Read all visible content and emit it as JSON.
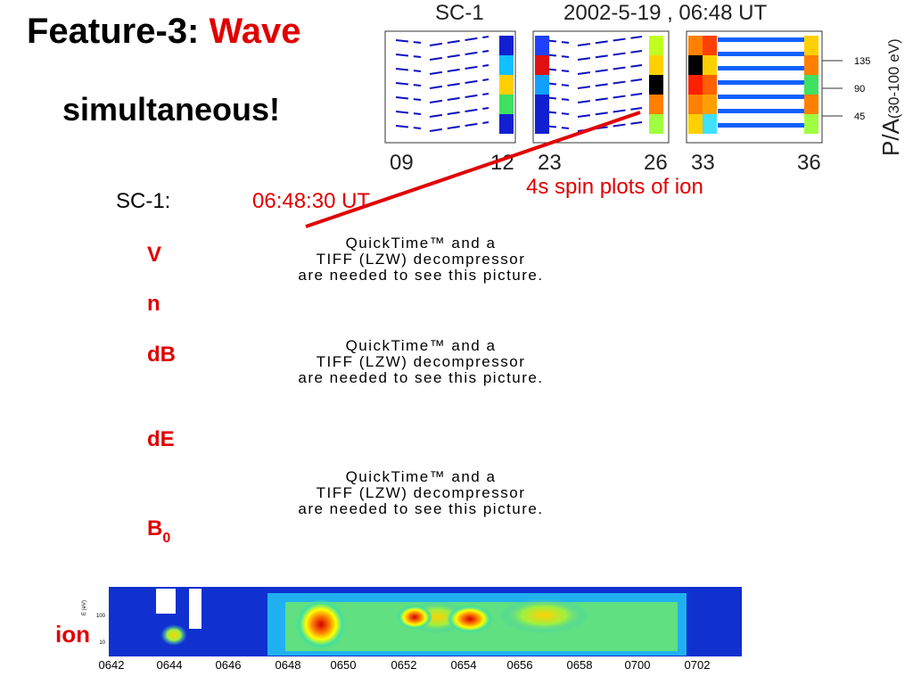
{
  "title": {
    "prefix": "Feature-3:",
    "highlight": "Wave"
  },
  "subtitle": "simultaneous!",
  "spin_plot": {
    "spacecraft": "SC-1",
    "datetime": "2002-5-19 , 06:48 UT",
    "x_ticks": [
      "09",
      "12",
      "23",
      "26",
      "33",
      "36"
    ],
    "pa_ticks": [
      "135",
      "90",
      "45"
    ],
    "axis_label": "P/A",
    "axis_unit": "(30-100 eV)",
    "annotation": "4s spin plots of ion"
  },
  "event": {
    "spacecraft": "SC-1:",
    "time": "06:48:30 UT"
  },
  "panel_labels": [
    "V",
    "n",
    "dB",
    "dE"
  ],
  "b0": {
    "base": "B",
    "subscript": "0"
  },
  "placeholder": [
    "QuickTime™ and a",
    "TIFF (LZW) decompressor",
    "are needed to see this picture."
  ],
  "ion_spectrogram": {
    "label": "ion",
    "y_label": "E (eV)",
    "y_ticks": [
      "100",
      "10"
    ],
    "x_ticks": [
      "0642",
      "0644",
      "0646",
      "0648",
      "0650",
      "0652",
      "0654",
      "0656",
      "0658",
      "0700",
      "0702"
    ]
  }
}
